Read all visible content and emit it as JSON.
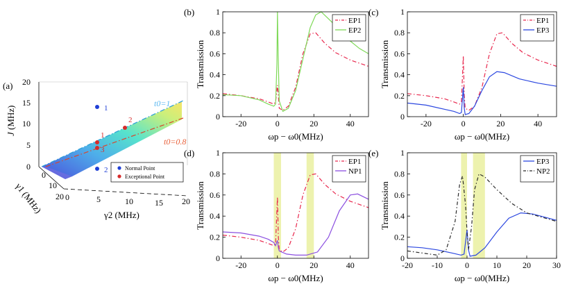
{
  "chart_data": [
    {
      "id": "a",
      "type": "surface3d",
      "panel_label": "(a)",
      "zlabel": "J",
      "zlabel_unit": "(MHz)",
      "ylabel": "γ1 (MHz)",
      "xlabel": "γ2 (MHz)",
      "x_ticks": [
        "0",
        "5",
        "10",
        "15",
        "20"
      ],
      "y_ticks": [
        "0",
        "10",
        "20"
      ],
      "z_ticks": [
        "0",
        "5",
        "10",
        "15",
        "20"
      ],
      "curve_labels": [
        "t0=1",
        "t0=0.8"
      ],
      "point_labels": [
        "1",
        "2",
        "1",
        "3",
        "2"
      ],
      "legend": [
        "Normal Point",
        "Exceptional Point"
      ],
      "colors": {
        "normal": "#1f3fd6",
        "exceptional": "#d62b2b",
        "t1": "#5bb8f0",
        "t08": "#e8603a"
      }
    },
    {
      "id": "b",
      "type": "line",
      "panel_label": "(b)",
      "xlabel": "ωp − ω0(MHz)",
      "ylabel": "Transmission",
      "xlim": [
        -30,
        50
      ],
      "ylim": [
        0,
        1
      ],
      "x_ticks": [
        "-20",
        "0",
        "20",
        "40"
      ],
      "y_ticks": [
        "0",
        "0.2",
        "0.4",
        "0.6",
        "0.8",
        "1"
      ],
      "highlights": [],
      "series": [
        {
          "name": "EP1",
          "color": "#e8274d",
          "dash": "6,3,1.5,3",
          "points": [
            [
              -30,
              0.22
            ],
            [
              -20,
              0.2
            ],
            [
              -10,
              0.17
            ],
            [
              -5,
              0.14
            ],
            [
              -2,
              0.12
            ],
            [
              -1,
              0.14
            ],
            [
              0,
              0.3
            ],
            [
              0.5,
              0.2
            ],
            [
              1,
              0.08
            ],
            [
              3,
              0.06
            ],
            [
              6,
              0.1
            ],
            [
              10,
              0.28
            ],
            [
              14,
              0.6
            ],
            [
              18,
              0.79
            ],
            [
              21,
              0.8
            ],
            [
              26,
              0.7
            ],
            [
              32,
              0.61
            ],
            [
              40,
              0.54
            ],
            [
              50,
              0.48
            ]
          ]
        },
        {
          "name": "EP2",
          "color": "#7ed957",
          "dash": "",
          "points": [
            [
              -30,
              0.21
            ],
            [
              -20,
              0.2
            ],
            [
              -10,
              0.16
            ],
            [
              -5,
              0.12
            ],
            [
              -2,
              0.1
            ],
            [
              -1,
              0.12
            ],
            [
              -0.3,
              0.5
            ],
            [
              0,
              1
            ],
            [
              0.4,
              0.6
            ],
            [
              1,
              0.15
            ],
            [
              3,
              0.05
            ],
            [
              6,
              0.08
            ],
            [
              10,
              0.25
            ],
            [
              14,
              0.55
            ],
            [
              18,
              0.85
            ],
            [
              21,
              0.97
            ],
            [
              24,
              1.0
            ],
            [
              30,
              0.9
            ],
            [
              38,
              0.75
            ],
            [
              45,
              0.65
            ],
            [
              50,
              0.6
            ]
          ]
        }
      ]
    },
    {
      "id": "c",
      "type": "line",
      "panel_label": "(c)",
      "xlabel": "ωp − ω0(MHz)",
      "ylabel": "Transmission",
      "xlim": [
        -30,
        50
      ],
      "ylim": [
        0,
        1
      ],
      "x_ticks": [
        "-20",
        "0",
        "20",
        "40"
      ],
      "y_ticks": [
        "0",
        "0.2",
        "0.4",
        "0.6",
        "0.8",
        "1"
      ],
      "highlights": [],
      "series": [
        {
          "name": "EP1",
          "color": "#e8274d",
          "dash": "6,3,1.5,3",
          "points": [
            [
              -30,
              0.22
            ],
            [
              -20,
              0.2
            ],
            [
              -10,
              0.17
            ],
            [
              -5,
              0.14
            ],
            [
              -2,
              0.12
            ],
            [
              -1,
              0.14
            ],
            [
              0,
              0.58
            ],
            [
              0.5,
              0.2
            ],
            [
              1,
              0.08
            ],
            [
              3,
              0.06
            ],
            [
              6,
              0.1
            ],
            [
              10,
              0.28
            ],
            [
              14,
              0.6
            ],
            [
              18,
              0.79
            ],
            [
              21,
              0.8
            ],
            [
              26,
              0.7
            ],
            [
              32,
              0.61
            ],
            [
              40,
              0.54
            ],
            [
              50,
              0.48
            ]
          ]
        },
        {
          "name": "EP3",
          "color": "#2b47e0",
          "dash": "",
          "points": [
            [
              -30,
              0.13
            ],
            [
              -20,
              0.11
            ],
            [
              -10,
              0.07
            ],
            [
              -5,
              0.05
            ],
            [
              -2,
              0.03
            ],
            [
              -1,
              0.04
            ],
            [
              0,
              0.28
            ],
            [
              0.5,
              0.08
            ],
            [
              1,
              0.02
            ],
            [
              3,
              0.03
            ],
            [
              6,
              0.1
            ],
            [
              10,
              0.25
            ],
            [
              14,
              0.38
            ],
            [
              18,
              0.43
            ],
            [
              22,
              0.42
            ],
            [
              30,
              0.36
            ],
            [
              40,
              0.32
            ],
            [
              50,
              0.29
            ]
          ]
        }
      ]
    },
    {
      "id": "d",
      "type": "line",
      "panel_label": "(d)",
      "xlabel": "ωp − ω0(MHz)",
      "ylabel": "Transmission",
      "xlim": [
        -30,
        50
      ],
      "ylim": [
        0,
        1
      ],
      "x_ticks": [
        "-20",
        "0",
        "20",
        "40"
      ],
      "y_ticks": [
        "0",
        "0.2",
        "0.4",
        "0.6",
        "0.8",
        "1"
      ],
      "highlights": [
        [
          -2,
          2
        ],
        [
          16,
          20
        ]
      ],
      "series": [
        {
          "name": "EP1",
          "color": "#e8274d",
          "dash": "6,3,1.5,3",
          "points": [
            [
              -30,
              0.22
            ],
            [
              -20,
              0.2
            ],
            [
              -10,
              0.17
            ],
            [
              -5,
              0.14
            ],
            [
              -2,
              0.12
            ],
            [
              -1,
              0.14
            ],
            [
              0,
              0.58
            ],
            [
              0.5,
              0.2
            ],
            [
              1,
              0.08
            ],
            [
              3,
              0.06
            ],
            [
              6,
              0.1
            ],
            [
              10,
              0.28
            ],
            [
              14,
              0.6
            ],
            [
              18,
              0.79
            ],
            [
              21,
              0.8
            ],
            [
              26,
              0.7
            ],
            [
              32,
              0.61
            ],
            [
              40,
              0.54
            ],
            [
              50,
              0.48
            ]
          ]
        },
        {
          "name": "NP1",
          "color": "#8b4fe0",
          "dash": "",
          "points": [
            [
              -30,
              0.25
            ],
            [
              -20,
              0.24
            ],
            [
              -10,
              0.21
            ],
            [
              -5,
              0.18
            ],
            [
              -2,
              0.15
            ],
            [
              -1,
              0.12
            ],
            [
              0,
              0.17
            ],
            [
              0.5,
              0.1
            ],
            [
              1,
              0.07
            ],
            [
              5,
              0.04
            ],
            [
              10,
              0.03
            ],
            [
              16,
              0.03
            ],
            [
              22,
              0.06
            ],
            [
              28,
              0.2
            ],
            [
              34,
              0.45
            ],
            [
              40,
              0.6
            ],
            [
              44,
              0.61
            ],
            [
              50,
              0.56
            ]
          ]
        }
      ]
    },
    {
      "id": "e",
      "type": "line",
      "panel_label": "(e)",
      "xlabel": "ωp − ω0(MHz)",
      "ylabel": "Transmission",
      "xlim": [
        -20,
        30
      ],
      "ylim": [
        0,
        1
      ],
      "x_ticks": [
        "-20",
        "-10",
        "0",
        "10",
        "20",
        "30"
      ],
      "y_ticks": [
        "0",
        "0.2",
        "0.4",
        "0.6",
        "0.8",
        "1"
      ],
      "highlights": [
        [
          -2,
          0
        ],
        [
          2,
          6
        ]
      ],
      "series": [
        {
          "name": "EP3",
          "color": "#2b47e0",
          "dash": "",
          "points": [
            [
              -20,
              0.11
            ],
            [
              -15,
              0.1
            ],
            [
              -10,
              0.08
            ],
            [
              -5,
              0.05
            ],
            [
              -2,
              0.03
            ],
            [
              -1,
              0.04
            ],
            [
              0,
              0.27
            ],
            [
              0.5,
              0.08
            ],
            [
              1,
              0.02
            ],
            [
              3,
              0.03
            ],
            [
              6,
              0.1
            ],
            [
              10,
              0.25
            ],
            [
              14,
              0.38
            ],
            [
              18,
              0.43
            ],
            [
              22,
              0.42
            ],
            [
              26,
              0.39
            ],
            [
              30,
              0.36
            ]
          ]
        },
        {
          "name": "NP2",
          "color": "#2a2a2a",
          "dash": "5,3,1.5,3",
          "points": [
            [
              -20,
              0.07
            ],
            [
              -15,
              0.05
            ],
            [
              -10,
              0.03
            ],
            [
              -7,
              0.08
            ],
            [
              -4,
              0.35
            ],
            [
              -2.5,
              0.7
            ],
            [
              -1.5,
              0.78
            ],
            [
              -0.5,
              0.5
            ],
            [
              0,
              0.25
            ],
            [
              0.5,
              0.08
            ],
            [
              1.5,
              0.3
            ],
            [
              2.5,
              0.65
            ],
            [
              4,
              0.8
            ],
            [
              6,
              0.77
            ],
            [
              10,
              0.65
            ],
            [
              15,
              0.52
            ],
            [
              20,
              0.43
            ],
            [
              25,
              0.39
            ],
            [
              30,
              0.35
            ]
          ]
        }
      ]
    }
  ]
}
